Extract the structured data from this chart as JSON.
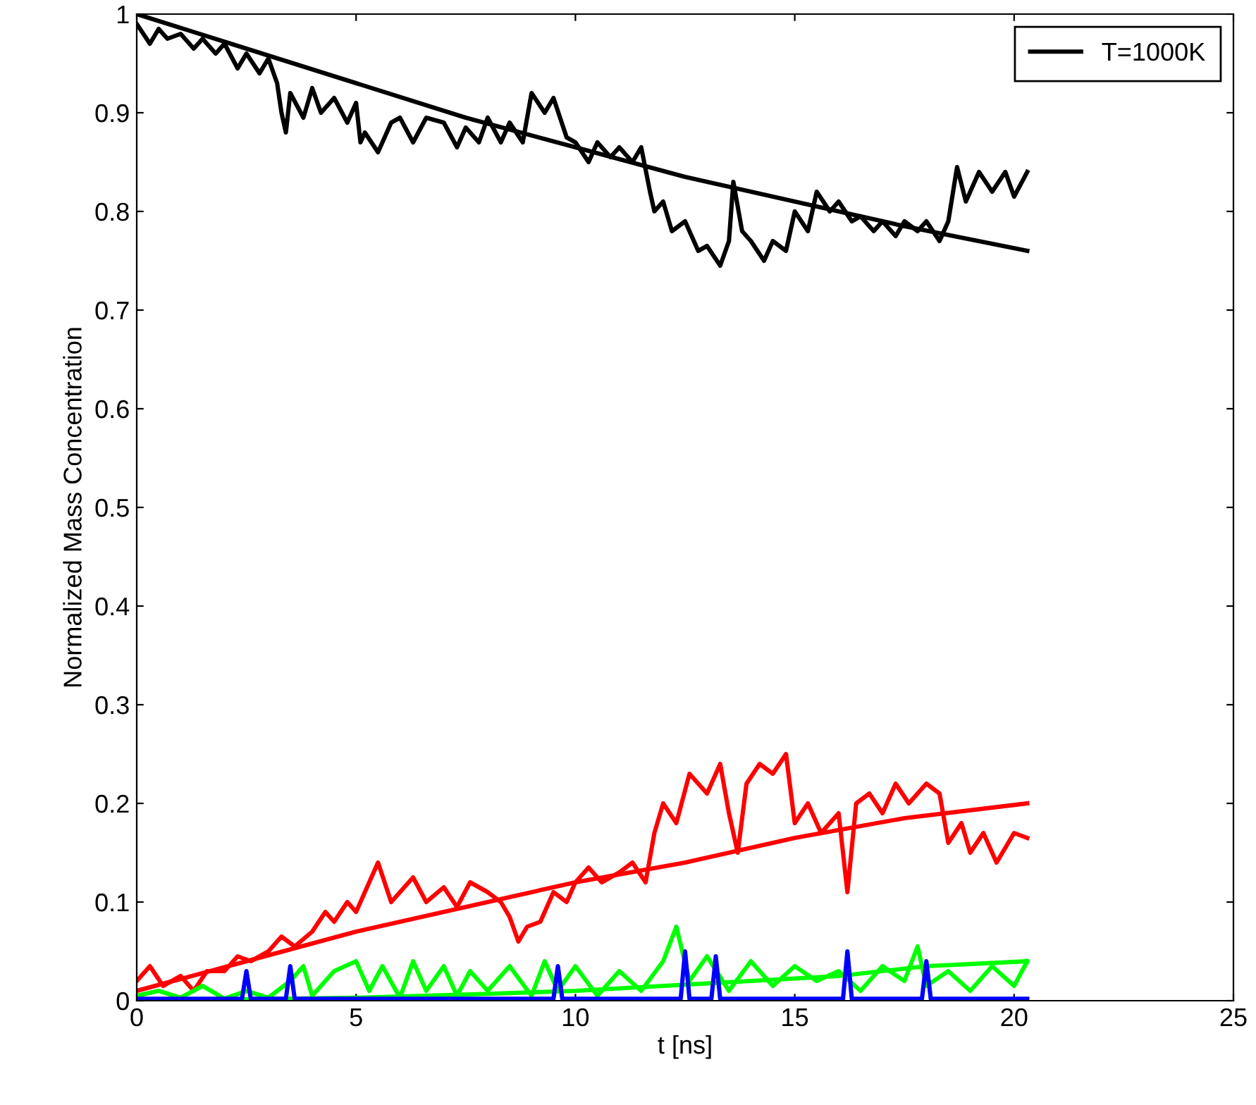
{
  "chart_data": {
    "type": "line",
    "xlabel": "t [ns]",
    "ylabel": "Normalized Mass Concentration",
    "xlim": [
      0,
      25
    ],
    "ylim": [
      0,
      1
    ],
    "xticks": [
      0,
      5,
      10,
      15,
      20,
      25
    ],
    "yticks": [
      0,
      0.1,
      0.2,
      0.3,
      0.4,
      0.5,
      0.6,
      0.7,
      0.8,
      0.9,
      1
    ],
    "grid": false,
    "legend": "top right",
    "marker": "none",
    "line_style": "solid",
    "series": [
      {
        "name": "T=1000K",
        "color": "#000000",
        "x": [
          0,
          0.3,
          0.5,
          0.7,
          1,
          1.3,
          1.5,
          1.8,
          2,
          2.3,
          2.5,
          2.8,
          3,
          3.2,
          3.3,
          3.4,
          3.5,
          3.8,
          4,
          4.2,
          4.5,
          4.8,
          5,
          5.1,
          5.2,
          5.5,
          5.8,
          6,
          6.3,
          6.6,
          7,
          7.3,
          7.5,
          7.8,
          8,
          8.3,
          8.5,
          8.8,
          9,
          9.3,
          9.5,
          9.8,
          10,
          10.3,
          10.5,
          10.8,
          11,
          11.3,
          11.5,
          11.7,
          11.8,
          12,
          12.2,
          12.5,
          12.8,
          13,
          13.3,
          13.5,
          13.6,
          13.8,
          14,
          14.3,
          14.5,
          14.8,
          15,
          15.3,
          15.5,
          15.8,
          16,
          16.3,
          16.5,
          16.8,
          17,
          17.3,
          17.5,
          17.8,
          18,
          18.3,
          18.5,
          18.7,
          18.9,
          19.2,
          19.5,
          19.8,
          20,
          20.3
        ],
        "values": [
          0.99,
          0.97,
          0.985,
          0.975,
          0.98,
          0.965,
          0.975,
          0.96,
          0.97,
          0.945,
          0.96,
          0.94,
          0.955,
          0.93,
          0.9,
          0.88,
          0.92,
          0.895,
          0.925,
          0.9,
          0.915,
          0.89,
          0.91,
          0.87,
          0.88,
          0.86,
          0.89,
          0.895,
          0.87,
          0.895,
          0.89,
          0.865,
          0.885,
          0.87,
          0.895,
          0.87,
          0.89,
          0.87,
          0.92,
          0.9,
          0.915,
          0.875,
          0.87,
          0.85,
          0.87,
          0.855,
          0.865,
          0.85,
          0.865,
          0.82,
          0.8,
          0.81,
          0.78,
          0.79,
          0.76,
          0.765,
          0.745,
          0.77,
          0.83,
          0.78,
          0.77,
          0.75,
          0.77,
          0.76,
          0.8,
          0.78,
          0.82,
          0.8,
          0.81,
          0.79,
          0.795,
          0.78,
          0.79,
          0.775,
          0.79,
          0.78,
          0.79,
          0.77,
          0.79,
          0.845,
          0.81,
          0.84,
          0.82,
          0.84,
          0.815,
          0.84
        ]
      },
      {
        "color": "#000000",
        "x": [
          0,
          2.5,
          5,
          7.5,
          10,
          12.5,
          15,
          17.5,
          20.3
        ],
        "values": [
          1.0,
          0.965,
          0.93,
          0.895,
          0.865,
          0.835,
          0.81,
          0.785,
          0.76
        ]
      },
      {
        "color": "#ff0000",
        "x": [
          0,
          0.3,
          0.6,
          1,
          1.3,
          1.6,
          2,
          2.3,
          2.6,
          3,
          3.3,
          3.6,
          4,
          4.3,
          4.5,
          4.8,
          5,
          5.3,
          5.5,
          5.8,
          6,
          6.3,
          6.6,
          7,
          7.3,
          7.6,
          8,
          8.3,
          8.5,
          8.7,
          8.9,
          9.2,
          9.5,
          9.8,
          10,
          10.3,
          10.6,
          11,
          11.3,
          11.6,
          11.8,
          12,
          12.3,
          12.6,
          13,
          13.3,
          13.5,
          13.7,
          13.9,
          14.2,
          14.5,
          14.8,
          15,
          15.3,
          15.6,
          16,
          16.2,
          16.4,
          16.7,
          17,
          17.3,
          17.6,
          18,
          18.3,
          18.5,
          18.8,
          19,
          19.3,
          19.6,
          20,
          20.3
        ],
        "values": [
          0.02,
          0.035,
          0.015,
          0.025,
          0.01,
          0.03,
          0.03,
          0.045,
          0.04,
          0.05,
          0.065,
          0.055,
          0.07,
          0.09,
          0.08,
          0.1,
          0.09,
          0.12,
          0.14,
          0.1,
          0.11,
          0.125,
          0.1,
          0.115,
          0.095,
          0.12,
          0.11,
          0.1,
          0.085,
          0.06,
          0.075,
          0.08,
          0.11,
          0.1,
          0.12,
          0.135,
          0.12,
          0.13,
          0.14,
          0.12,
          0.17,
          0.2,
          0.18,
          0.23,
          0.21,
          0.24,
          0.19,
          0.15,
          0.22,
          0.24,
          0.23,
          0.25,
          0.18,
          0.2,
          0.17,
          0.19,
          0.11,
          0.2,
          0.21,
          0.19,
          0.22,
          0.2,
          0.22,
          0.21,
          0.16,
          0.18,
          0.15,
          0.17,
          0.14,
          0.17,
          0.165
        ]
      },
      {
        "color": "#ff0000",
        "x": [
          0,
          2.5,
          5,
          7.5,
          10,
          12.5,
          15,
          17.5,
          20.3
        ],
        "values": [
          0.01,
          0.04,
          0.07,
          0.095,
          0.12,
          0.14,
          0.165,
          0.185,
          0.2
        ]
      },
      {
        "color": "#00ff00",
        "x": [
          0,
          0.5,
          1,
          1.5,
          2,
          2.5,
          3,
          3.5,
          3.8,
          4,
          4.5,
          5,
          5.3,
          5.6,
          6,
          6.3,
          6.6,
          7,
          7.3,
          7.6,
          8,
          8.5,
          9,
          9.3,
          9.6,
          10,
          10.5,
          11,
          11.5,
          12,
          12.3,
          12.6,
          13,
          13.5,
          14,
          14.5,
          15,
          15.5,
          16,
          16.5,
          17,
          17.5,
          17.8,
          18,
          18.5,
          19,
          19.5,
          20,
          20.3
        ],
        "values": [
          0.005,
          0.01,
          0.003,
          0.015,
          0.002,
          0.01,
          0.003,
          0.02,
          0.035,
          0.005,
          0.03,
          0.04,
          0.01,
          0.035,
          0.003,
          0.04,
          0.01,
          0.035,
          0.005,
          0.03,
          0.01,
          0.035,
          0.005,
          0.04,
          0.01,
          0.035,
          0.005,
          0.03,
          0.01,
          0.04,
          0.075,
          0.02,
          0.045,
          0.01,
          0.04,
          0.015,
          0.035,
          0.02,
          0.03,
          0.01,
          0.035,
          0.02,
          0.055,
          0.015,
          0.03,
          0.01,
          0.035,
          0.015,
          0.04
        ]
      },
      {
        "color": "#00ff00",
        "x": [
          0,
          5,
          8,
          10,
          12,
          14,
          16,
          18,
          20.3
        ],
        "values": [
          0,
          0.003,
          0.007,
          0.01,
          0.015,
          0.02,
          0.025,
          0.035,
          0.04
        ]
      },
      {
        "color": "#0000ff",
        "x": [
          0,
          2.4,
          2.5,
          2.6,
          3.4,
          3.5,
          3.6,
          9.5,
          9.6,
          9.7,
          12.4,
          12.5,
          12.6,
          13.1,
          13.2,
          13.3,
          16.1,
          16.2,
          16.3,
          17.9,
          18,
          18.1,
          20.3
        ],
        "values": [
          0.002,
          0.002,
          0.03,
          0.002,
          0.002,
          0.035,
          0.002,
          0.002,
          0.035,
          0.002,
          0.002,
          0.05,
          0.002,
          0.002,
          0.045,
          0.002,
          0.002,
          0.05,
          0.002,
          0.002,
          0.04,
          0.002,
          0.002
        ]
      }
    ]
  }
}
